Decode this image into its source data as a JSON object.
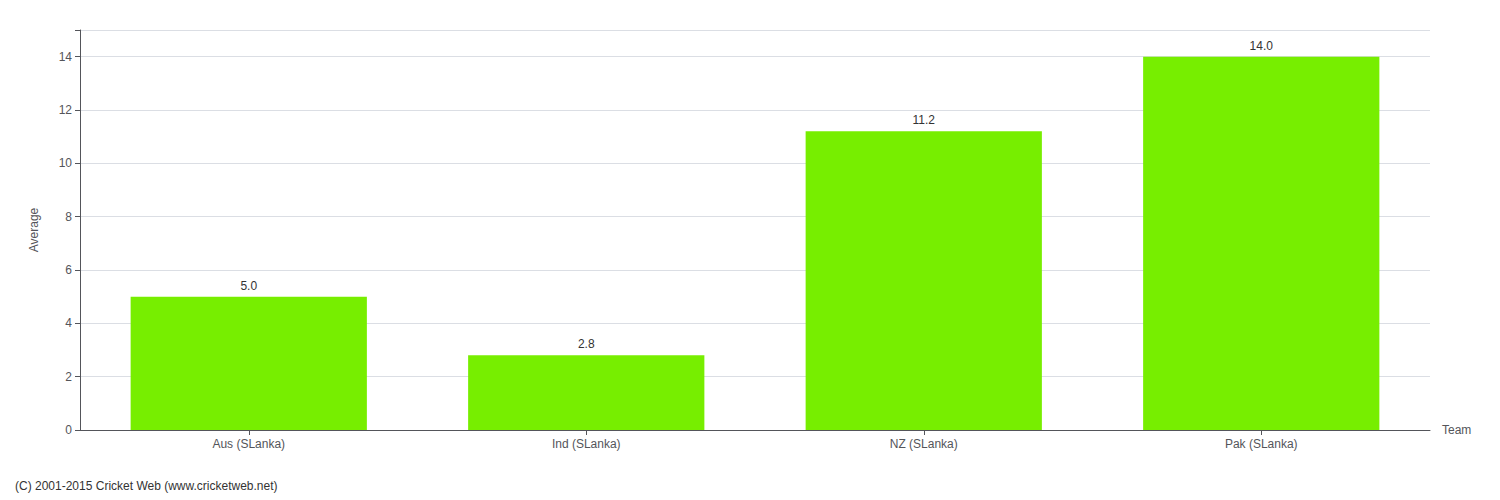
{
  "chart_data": {
    "type": "bar",
    "categories": [
      "Aus (SLanka)",
      "Ind (SLanka)",
      "NZ (SLanka)",
      "Pak (SLanka)"
    ],
    "values": [
      5.0,
      2.8,
      11.2,
      14.0
    ],
    "value_labels": [
      "5.0",
      "2.8",
      "11.2",
      "14.0"
    ],
    "data_labels": true,
    "color": "#77ee00",
    "xlabel": "Team",
    "ylabel": "Average",
    "ylim": [
      0,
      15
    ],
    "yticks": [
      0,
      2,
      4,
      6,
      8,
      10,
      12,
      14
    ],
    "grid": true,
    "annotations": [
      "(C) 2001-2015 Cricket Web (www.cricketweb.net)"
    ]
  }
}
